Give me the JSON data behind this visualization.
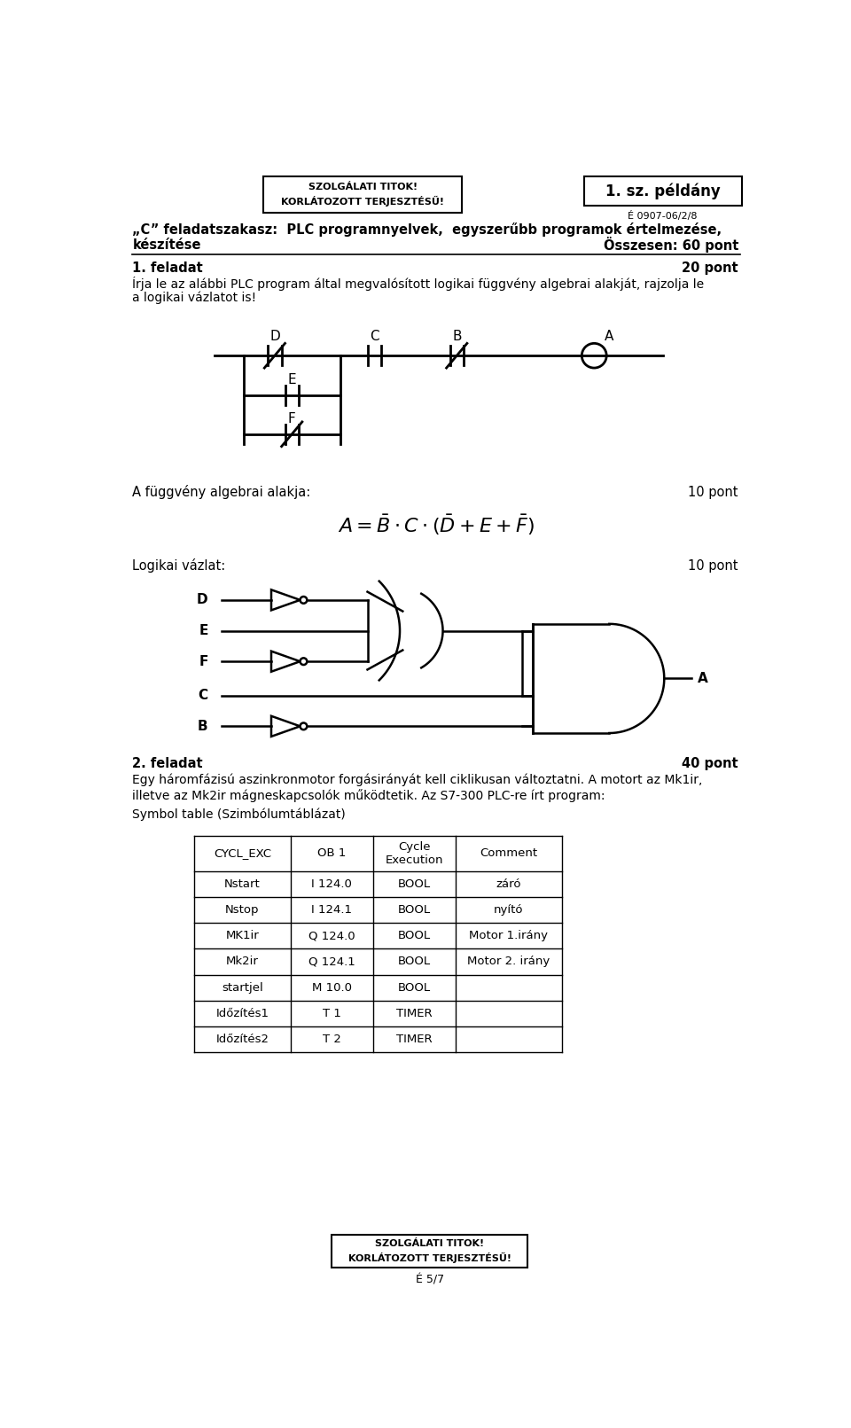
{
  "bg_color": "#ffffff",
  "page_width": 9.6,
  "page_height": 16.11,
  "header_box1_text": "SZOLGÁLATI TITOK!\nKORLÁTOZOTT TERJESZTÉSŰ!",
  "header_box2_text": "1. sz. példány",
  "header_sub_text": "É 0907-06/2/8",
  "title_line1": "„C” feladatszakasz:  PLC programnyelvek,  egyszerűbb programok értelmezése,",
  "title_line2": "készítése",
  "osszesen": "Összesen: 60 pont",
  "feladat1_label": "1. feladat",
  "feladat1_points": "20 pont",
  "feladat1_text1": "Írja le az alábbi PLC program által megvalósított logikai függvény algebrai alakját, rajzolja le",
  "feladat1_text2": "a logikai vázlatot is!",
  "algebra_label": "A függvény algebrai alakja:",
  "algebra_points": "10 pont",
  "logic_label": "Logikai vázlat:",
  "logic_points": "10 pont",
  "feladat2_label": "2. feladat",
  "feladat2_points": "40 pont",
  "feladat2_text1": "Egy háromfázisú aszinkronmotor forgásirányát kell ciklikusan változtatni. A motort az Mk1ir,",
  "feladat2_text2": "illetve az Mk2ir mágneskapcsolók működtetik. Az S7-300 PLC-re írt program:",
  "symbol_table_label": "Symbol table (Szimbólumtáblázat)",
  "table_data": [
    [
      "CYCL_EXC",
      "OB 1",
      "Cycle\nExecution",
      "Comment"
    ],
    [
      "Nstart",
      "I 124.0",
      "BOOL",
      "záró"
    ],
    [
      "Nstop",
      "I 124.1",
      "BOOL",
      "nyító"
    ],
    [
      "MK1ir",
      "Q 124.0",
      "BOOL",
      "Motor 1.irány"
    ],
    [
      "Mk2ir",
      "Q 124.1",
      "BOOL",
      "Motor 2. irány"
    ],
    [
      "startjel",
      "M 10.0",
      "BOOL",
      ""
    ],
    [
      "Időzítés1",
      "T 1",
      "TIMER",
      ""
    ],
    [
      "Időzítés2",
      "T 2",
      "TIMER",
      ""
    ]
  ],
  "footer_box_text": "SZOLGÁLATI TITOK!\nKORLÁTOZOTT TERJESZTÉSŰ!",
  "footer_page": "É 5/7"
}
